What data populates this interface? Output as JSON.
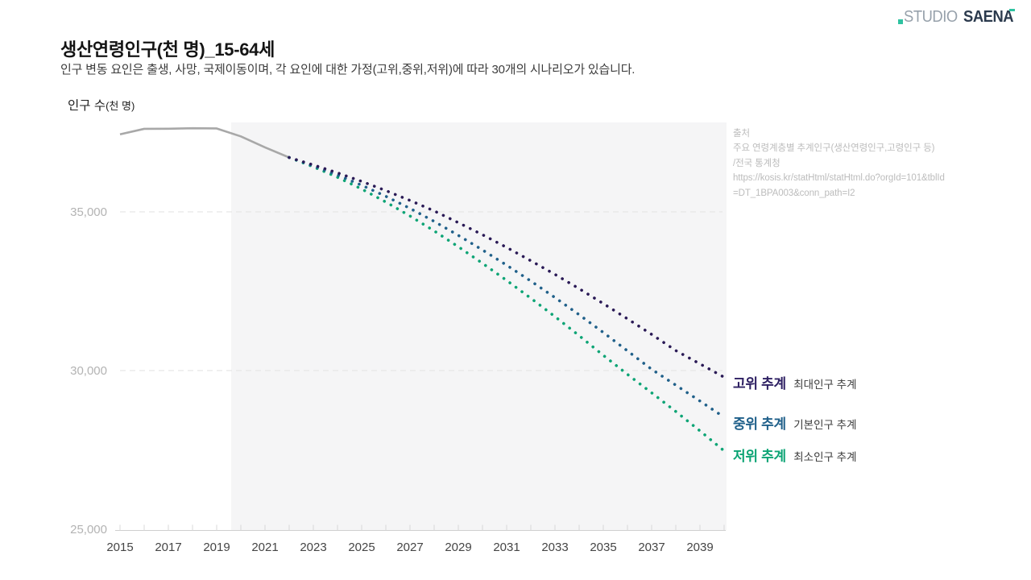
{
  "brand": {
    "studio": "STUDIO",
    "saena": "SAENA",
    "colors": {
      "accent": "#2fc3a1",
      "studio_text": "#97a1ab",
      "saena_text": "#2b3a4d"
    }
  },
  "header": {
    "title": "생산연령인구(천 명)_15-64세",
    "subtitle": "인구 변동 요인은 출생, 사망, 국제이동이며, 각 요인에 대한 가정(고위,중위,저위)에 따라 30개의 시나리오가 있습니다."
  },
  "axis_title": {
    "main": "인구 수",
    "unit": "(천 명)"
  },
  "source": {
    "label": "출처",
    "lines": [
      "주요 연령계층별 추계인구(생산연령인구,고령인구 등)",
      "/전국 통계청",
      "https://kosis.kr/statHtml/statHtml.do?orgId=101&tblId",
      "=DT_1BPA003&conn_path=I2"
    ]
  },
  "legend": [
    {
      "label": "고위 추계",
      "sublabel": "최대인구 추계",
      "color": "#2e2063"
    },
    {
      "label": "중위 추계",
      "sublabel": "기본인구 추계",
      "color": "#20608a"
    },
    {
      "label": "저위 추계",
      "sublabel": "최소인구 추계",
      "color": "#0da475"
    }
  ],
  "chart_data": {
    "type": "line",
    "title": "생산연령인구(천 명)_15-64세",
    "ylabel": "인구 수(천 명)",
    "xlabel": "",
    "xlim": [
      2015,
      2040
    ],
    "ylim": [
      25000,
      37900
    ],
    "x_tick_years": [
      2015,
      2017,
      2019,
      2021,
      2023,
      2025,
      2027,
      2029,
      2031,
      2033,
      2035,
      2037,
      2039
    ],
    "x_minor_tick_step": 1,
    "y_ticks": [
      {
        "value": 25000,
        "label": "25,000"
      },
      {
        "value": 30000,
        "label": "30,000"
      },
      {
        "value": 35000,
        "label": "35,000"
      }
    ],
    "grid": "horizontal dashed at 30,000 and 35,000",
    "legend_position": "right of line ends",
    "forecast_region": {
      "start_year": 2019.6,
      "end_year": 2040.1,
      "color": "#f5f5f6"
    },
    "series": [
      {
        "name": "historical",
        "style": "solid",
        "color": "#a8a8a8",
        "start_year": 2015,
        "values": [
          37444,
          37616,
          37620,
          37635,
          37628,
          37378,
          37031,
          36713
        ]
      },
      {
        "name": "저위 추계",
        "style": "dotted",
        "color": "#0da475",
        "start_year": 2022,
        "values": [
          36713,
          36420,
          36090,
          35720,
          35310,
          34870,
          34400,
          33900,
          33380,
          32840,
          32280,
          31700,
          31100,
          30480,
          29880,
          29300,
          28710,
          28100,
          27470
        ]
      },
      {
        "name": "중위 추계",
        "style": "dotted",
        "color": "#20608a",
        "start_year": 2022,
        "values": [
          36713,
          36450,
          36160,
          35840,
          35490,
          35110,
          34700,
          34260,
          33800,
          33320,
          32820,
          32300,
          31760,
          31200,
          30620,
          30040,
          29540,
          29040,
          28530
        ]
      },
      {
        "name": "고위 추계",
        "style": "dotted",
        "color": "#2a1a56",
        "start_year": 2022,
        "values": [
          36713,
          36480,
          36230,
          35960,
          35670,
          35360,
          35030,
          34660,
          34280,
          33880,
          33460,
          33030,
          32580,
          32110,
          31630,
          31140,
          30630,
          30210,
          29790
        ]
      }
    ]
  }
}
